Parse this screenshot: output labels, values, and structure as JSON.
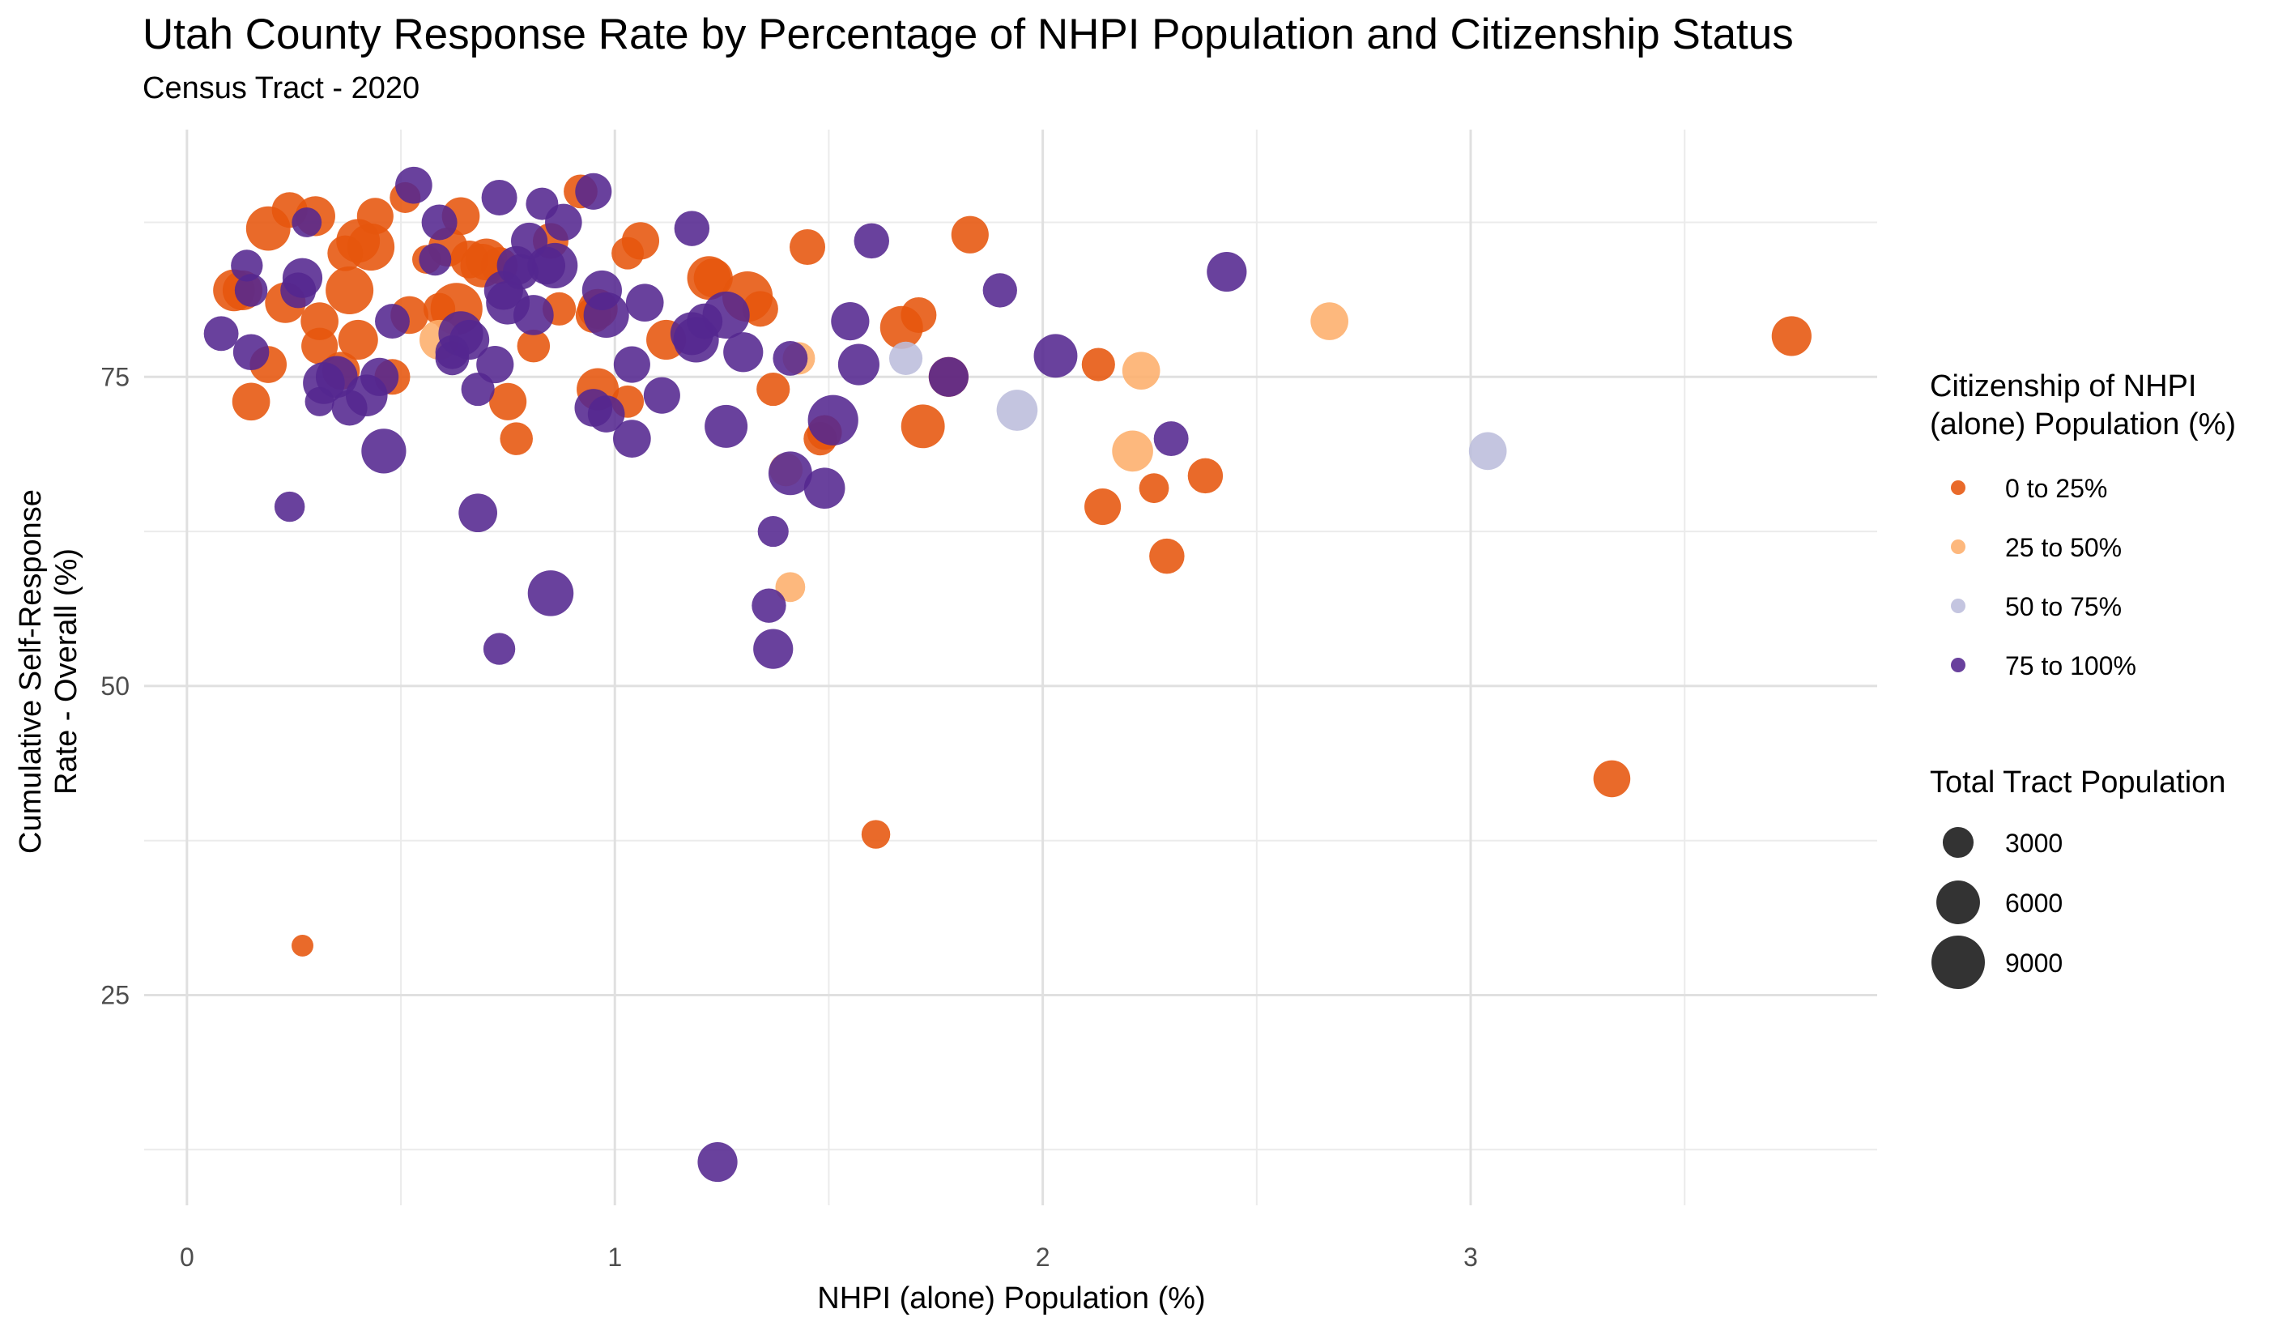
{
  "title": "Utah County Response Rate by Percentage of NHPI Population and Citizenship Status",
  "subtitle": "Census Tract - 2020",
  "chart_data": {
    "type": "scatter",
    "title": "Utah County Response Rate by Percentage of NHPI Population and Citizenship Status",
    "subtitle": "Census Tract - 2020",
    "xlabel": "NHPI (alone) Population (%)",
    "ylabel": [
      "Cumulative Self-Response",
      "Rate - Overall (%)"
    ],
    "xlim": [
      -0.1,
      3.95
    ],
    "ylim": [
      8,
      95
    ],
    "x_ticks": [
      0,
      1,
      2,
      3
    ],
    "y_ticks": [
      25,
      50,
      75
    ],
    "grid": true,
    "legend_position": "right",
    "color_legend": {
      "title": [
        "Citizenship of NHPI",
        "(alone) Population (%)"
      ],
      "entries": [
        {
          "label": "0 to 25%",
          "color": "#e6550d"
        },
        {
          "label": "25 to 50%",
          "color": "#fdae6b"
        },
        {
          "label": "50 to 75%",
          "color": "#bcbddc"
        },
        {
          "label": "75 to 100%",
          "color": "#54278f"
        }
      ]
    },
    "size_legend": {
      "title": "Total Tract Population",
      "entries": [
        3000,
        6000,
        9000
      ]
    },
    "series": [
      {
        "name": "0 to 25%",
        "color": "#e6550d",
        "points": [
          [
            0.11,
            82,
            5500
          ],
          [
            0.13,
            82,
            5000
          ],
          [
            0.15,
            73,
            4500
          ],
          [
            0.19,
            87,
            6200
          ],
          [
            0.19,
            76,
            4300
          ],
          [
            0.23,
            81,
            5200
          ],
          [
            0.24,
            88.5,
            4000
          ],
          [
            0.3,
            88,
            5000
          ],
          [
            0.31,
            79.5,
            4500
          ],
          [
            0.31,
            77.5,
            4200
          ],
          [
            0.36,
            75.5,
            4500
          ],
          [
            0.37,
            85,
            4000
          ],
          [
            0.38,
            82,
            7200
          ],
          [
            0.4,
            86,
            6000
          ],
          [
            0.4,
            78,
            5000
          ],
          [
            0.43,
            85.5,
            7000
          ],
          [
            0.44,
            88,
            4200
          ],
          [
            0.48,
            75,
            4000
          ],
          [
            0.51,
            89.5,
            3000
          ],
          [
            0.52,
            80,
            4500
          ],
          [
            0.56,
            84.5,
            2600
          ],
          [
            0.59,
            80.5,
            3200
          ],
          [
            0.61,
            85.5,
            4800
          ],
          [
            0.63,
            80.5,
            8500
          ],
          [
            0.64,
            88,
            4500
          ],
          [
            0.66,
            84.5,
            4500
          ],
          [
            0.69,
            84,
            6000
          ],
          [
            0.7,
            84.5,
            5500
          ],
          [
            0.73,
            84,
            4300
          ],
          [
            0.75,
            73,
            4400
          ],
          [
            0.77,
            70,
            3400
          ],
          [
            0.81,
            77.5,
            3400
          ],
          [
            0.85,
            86,
            4000
          ],
          [
            0.87,
            80.5,
            3500
          ],
          [
            0.92,
            90,
            3600
          ],
          [
            0.95,
            80,
            4000
          ],
          [
            0.96,
            80.5,
            5000
          ],
          [
            0.96,
            74,
            5600
          ],
          [
            1.03,
            85,
            3300
          ],
          [
            1.03,
            73,
            3300
          ],
          [
            1.06,
            86,
            4400
          ],
          [
            1.12,
            78,
            5000
          ],
          [
            1.22,
            83,
            6000
          ],
          [
            1.23,
            83,
            4800
          ],
          [
            1.31,
            81.5,
            8000
          ],
          [
            1.34,
            80.5,
            4000
          ],
          [
            1.37,
            74,
            3500
          ],
          [
            1.45,
            85.5,
            4000
          ],
          [
            1.48,
            70,
            3500
          ],
          [
            1.49,
            70.5,
            3800
          ],
          [
            1.61,
            38,
            2600
          ],
          [
            1.67,
            79,
            5800
          ],
          [
            1.71,
            80,
            4000
          ],
          [
            1.72,
            71,
            6000
          ],
          [
            1.78,
            75,
            5000
          ],
          [
            1.83,
            86.5,
            4400
          ],
          [
            2.13,
            76,
            3500
          ],
          [
            2.14,
            64.5,
            4200
          ],
          [
            2.26,
            66,
            2800
          ],
          [
            2.29,
            60.5,
            3900
          ],
          [
            2.38,
            67,
            3900
          ],
          [
            3.33,
            42.5,
            4300
          ],
          [
            3.75,
            78.3,
            5000
          ],
          [
            0.27,
            29,
            1500
          ]
        ]
      },
      {
        "name": "25 to 50%",
        "color": "#fdae6b",
        "points": [
          [
            0.59,
            78,
            5000
          ],
          [
            1.4,
            67.5,
            3500
          ],
          [
            1.41,
            58,
            2800
          ],
          [
            1.43,
            76.5,
            3300
          ],
          [
            2.21,
            69,
            5300
          ],
          [
            2.23,
            75.5,
            4500
          ],
          [
            2.67,
            79.5,
            4500
          ]
        ]
      },
      {
        "name": "50 to 75%",
        "color": "#bcbddc",
        "points": [
          [
            1.68,
            76.5,
            3500
          ],
          [
            1.94,
            72.3,
            5300
          ],
          [
            3.04,
            69,
            4500
          ]
        ]
      },
      {
        "name": "75 to 100%",
        "color": "#54278f",
        "points": [
          [
            0.08,
            78.5,
            3800
          ],
          [
            0.14,
            84,
            3200
          ],
          [
            0.15,
            77,
            4100
          ],
          [
            0.15,
            82,
            3400
          ],
          [
            0.24,
            64.5,
            2900
          ],
          [
            0.26,
            82,
            4000
          ],
          [
            0.27,
            83,
            5000
          ],
          [
            0.28,
            87.5,
            2800
          ],
          [
            0.31,
            73,
            2700
          ],
          [
            0.32,
            74.5,
            5500
          ],
          [
            0.35,
            75,
            5500
          ],
          [
            0.38,
            72.5,
            4000
          ],
          [
            0.42,
            73.5,
            5500
          ],
          [
            0.45,
            75,
            4600
          ],
          [
            0.46,
            69,
            6300
          ],
          [
            0.48,
            79.5,
            3800
          ],
          [
            0.53,
            90.5,
            4300
          ],
          [
            0.58,
            84.5,
            3300
          ],
          [
            0.59,
            87.5,
            4000
          ],
          [
            0.62,
            77,
            3600
          ],
          [
            0.62,
            76.5,
            3600
          ],
          [
            0.64,
            78.5,
            6300
          ],
          [
            0.66,
            78,
            5000
          ],
          [
            0.68,
            74,
            3500
          ],
          [
            0.68,
            64,
            4700
          ],
          [
            0.72,
            76,
            4400
          ],
          [
            0.73,
            89.5,
            4000
          ],
          [
            0.73,
            53,
            3200
          ],
          [
            0.74,
            82,
            4800
          ],
          [
            0.75,
            81,
            6000
          ],
          [
            0.77,
            84,
            4800
          ],
          [
            0.78,
            83.5,
            4000
          ],
          [
            0.8,
            86,
            4200
          ],
          [
            0.81,
            80,
            5100
          ],
          [
            0.83,
            89,
            3300
          ],
          [
            0.84,
            84,
            4500
          ],
          [
            0.85,
            57.5,
            6600
          ],
          [
            0.86,
            84,
            6500
          ],
          [
            0.88,
            87.5,
            4300
          ],
          [
            0.95,
            72.5,
            4500
          ],
          [
            0.95,
            90,
            4200
          ],
          [
            0.97,
            82,
            5000
          ],
          [
            0.98,
            72,
            4300
          ],
          [
            0.98,
            80,
            6500
          ],
          [
            1.04,
            76,
            4200
          ],
          [
            1.04,
            70,
            4500
          ],
          [
            1.07,
            81,
            4500
          ],
          [
            1.11,
            73.5,
            4200
          ],
          [
            1.18,
            87,
            3900
          ],
          [
            1.18,
            78.5,
            5800
          ],
          [
            1.19,
            78,
            6500
          ],
          [
            1.21,
            79.5,
            4000
          ],
          [
            1.24,
            11.5,
            5000
          ],
          [
            1.26,
            71,
            5800
          ],
          [
            1.26,
            80,
            7000
          ],
          [
            1.3,
            77,
            5000
          ],
          [
            1.36,
            56.5,
            3700
          ],
          [
            1.37,
            62.5,
            3000
          ],
          [
            1.37,
            53,
            5000
          ],
          [
            1.41,
            76.5,
            3800
          ],
          [
            1.41,
            67.2,
            6000
          ],
          [
            1.49,
            66,
            5300
          ],
          [
            1.51,
            71.5,
            8000
          ],
          [
            1.55,
            79.5,
            4600
          ],
          [
            1.57,
            76,
            5400
          ],
          [
            1.6,
            86,
            3900
          ],
          [
            1.78,
            75,
            5000
          ],
          [
            1.9,
            82,
            3700
          ],
          [
            2.03,
            76.7,
            6000
          ],
          [
            2.3,
            70,
            3800
          ],
          [
            2.43,
            83.5,
            5000
          ]
        ]
      }
    ]
  }
}
